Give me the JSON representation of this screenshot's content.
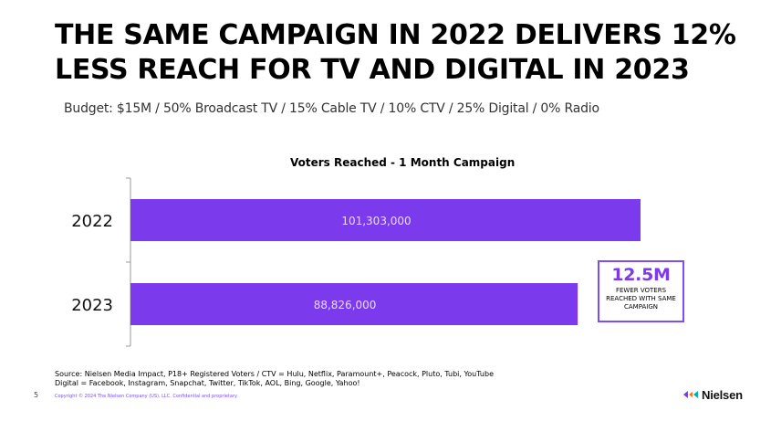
{
  "slide": {
    "title": "THE SAME CAMPAIGN IN 2022 DELIVERS 12% LESS REACH FOR TV AND DIGITAL IN 2023",
    "subtitle": "Budget: $15M / 50% Broadcast TV / 15% Cable TV / 10% CTV / 25% Digital / 0% Radio",
    "page_number": "5",
    "copyright": "Copyright © 2024 The Nielsen Company (US), LLC. Confidential and proprietary.",
    "logo_text": "Nielsen",
    "source_lines": [
      "Source: Nielsen Media Impact, P18+ Registered Voters / CTV = Hulu, Netflix, Paramount+, Peacock, Pluto, Tubi, YouTube",
      "Digital = Facebook, Instagram, Snapchat, Twitter, TikTok, AOL, Bing, Google, Yahoo!"
    ],
    "callout": {
      "value": "12.5M",
      "text": "FEWER VOTERS REACHED WITH SAME CAMPAIGN"
    }
  },
  "chart_data": {
    "type": "bar",
    "orientation": "horizontal",
    "title": "Voters Reached - 1 Month Campaign",
    "categories": [
      "2022",
      "2023"
    ],
    "values": [
      101303000,
      88826000
    ],
    "data_labels": [
      "101,303,000",
      "88,826,000"
    ],
    "xlim": [
      0,
      101303000
    ],
    "grid": false,
    "legend": "none",
    "bar_color": "#7c3aed",
    "label_color": "#e6dcff"
  }
}
